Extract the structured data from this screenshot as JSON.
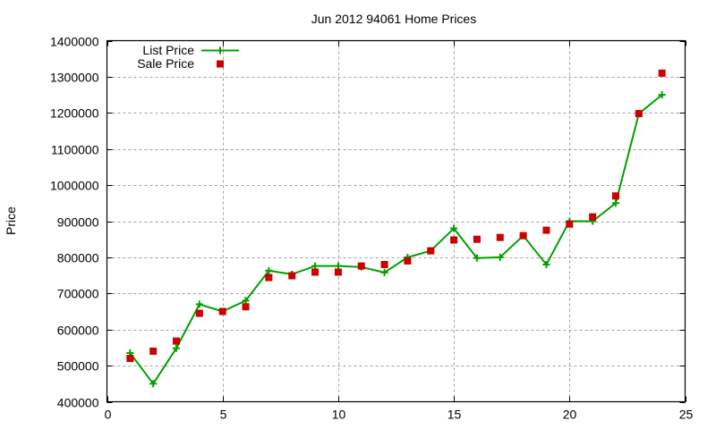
{
  "chart_data": {
    "type": "line",
    "title": "Jun 2012 94061 Home Prices",
    "xlabel": "",
    "ylabel": "Price",
    "xlim": [
      0,
      25
    ],
    "ylim": [
      400000,
      1400000
    ],
    "xticks": [
      0,
      5,
      10,
      15,
      20,
      25
    ],
    "yticks": [
      400000,
      500000,
      600000,
      700000,
      800000,
      900000,
      1000000,
      1100000,
      1200000,
      1300000,
      1400000
    ],
    "grid": true,
    "legend_position": "top-left",
    "x": [
      1,
      2,
      3,
      4,
      5,
      6,
      7,
      8,
      9,
      10,
      11,
      12,
      13,
      14,
      15,
      16,
      17,
      18,
      19,
      20,
      21,
      22,
      23,
      24
    ],
    "series": [
      {
        "name": "List Price",
        "style": "line+cross",
        "color": "#00a000",
        "values": [
          535000,
          450000,
          548000,
          670000,
          650000,
          680000,
          763000,
          753000,
          776000,
          776000,
          773000,
          758000,
          800000,
          818000,
          880000,
          798000,
          800000,
          860000,
          780000,
          900000,
          900000,
          950000,
          1198000,
          1250000
        ]
      },
      {
        "name": "Sale Price",
        "style": "square-markers",
        "color": "#cc0000",
        "values": [
          520000,
          540000,
          568000,
          645000,
          650000,
          663000,
          744000,
          749000,
          759000,
          759000,
          776000,
          780000,
          790000,
          818000,
          848000,
          850000,
          855000,
          860000,
          875000,
          892000,
          912000,
          970000,
          1198000,
          1310000
        ]
      }
    ]
  }
}
